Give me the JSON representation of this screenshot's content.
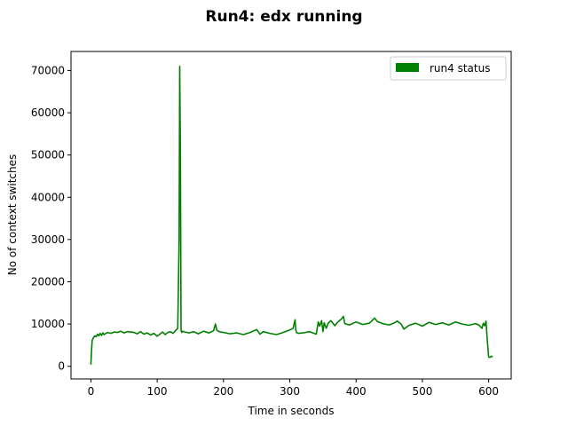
{
  "chart_data": {
    "type": "line",
    "title": "Run4: edx running",
    "xlabel": "Time  in seconds",
    "ylabel": "No of context switches",
    "xlim": [
      -30,
      634
    ],
    "ylim": [
      -3000,
      74500
    ],
    "xticks": [
      0,
      100,
      200,
      300,
      400,
      500,
      600
    ],
    "yticks": [
      0,
      10000,
      20000,
      30000,
      40000,
      50000,
      60000,
      70000
    ],
    "grid": false,
    "legend_position": "top-right",
    "series": [
      {
        "name": "run4 status",
        "color": "#008000",
        "x": [
          0,
          1,
          2,
          4,
          6,
          8,
          10,
          12,
          14,
          16,
          18,
          20,
          25,
          30,
          35,
          40,
          45,
          50,
          55,
          60,
          65,
          70,
          75,
          80,
          85,
          90,
          95,
          100,
          104,
          108,
          112,
          116,
          120,
          124,
          128,
          131,
          133,
          134,
          135,
          136,
          137,
          138,
          142,
          148,
          155,
          162,
          170,
          178,
          185,
          188,
          190,
          195,
          200,
          210,
          220,
          230,
          240,
          250,
          255,
          260,
          270,
          280,
          290,
          300,
          305,
          308,
          309,
          310,
          313,
          320,
          330,
          340,
          343,
          345,
          348,
          350,
          352,
          355,
          358,
          362,
          368,
          372,
          378,
          381,
          383,
          390,
          400,
          410,
          420,
          428,
          432,
          440,
          450,
          458,
          462,
          468,
          472,
          480,
          490,
          500,
          510,
          520,
          530,
          540,
          550,
          560,
          570,
          580,
          585,
          590,
          592,
          594,
          596,
          598,
          600,
          602,
          604,
          606
        ],
        "y": [
          400,
          4000,
          6200,
          6800,
          7200,
          7000,
          7600,
          7200,
          7800,
          7300,
          7900,
          7500,
          8000,
          7800,
          8100,
          8000,
          8300,
          7900,
          8200,
          8100,
          8000,
          7700,
          8200,
          7600,
          7900,
          7400,
          7800,
          7100,
          7600,
          8100,
          7500,
          8000,
          8200,
          7800,
          8500,
          9000,
          30000,
          71000,
          50000,
          8500,
          8000,
          8300,
          8100,
          7900,
          8200,
          7700,
          8300,
          7900,
          8400,
          10000,
          8500,
          8100,
          8000,
          7700,
          7900,
          7500,
          8000,
          8700,
          7600,
          8200,
          7800,
          7500,
          8000,
          8600,
          9000,
          11000,
          8700,
          8000,
          7800,
          7900,
          8200,
          7600,
          10500,
          9500,
          10800,
          8200,
          10300,
          9000,
          10200,
          10800,
          9600,
          10400,
          11200,
          11800,
          10100,
          9800,
          10500,
          9900,
          10200,
          11400,
          10600,
          10100,
          9800,
          10300,
          10700,
          10000,
          8800,
          9700,
          10200,
          9500,
          10400,
          9900,
          10300,
          9800,
          10500,
          10000,
          9700,
          10100,
          9800,
          9000,
          10200,
          9600,
          10700,
          6000,
          2200,
          2100,
          2400,
          2200
        ]
      }
    ]
  }
}
